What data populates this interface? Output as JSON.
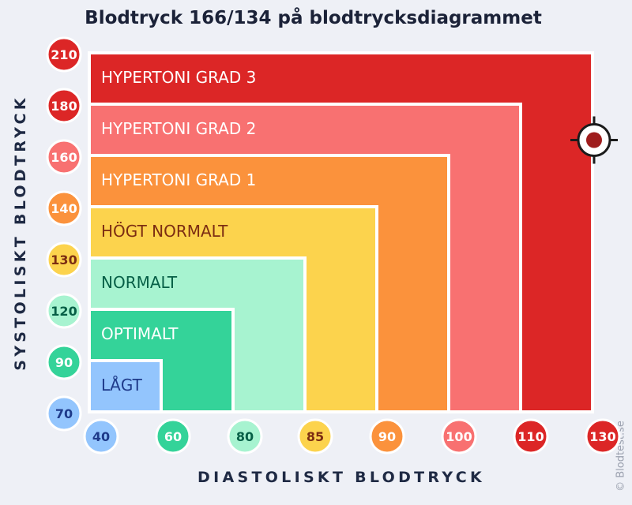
{
  "title": "Blodtryck 166/134 på blodtrycksdiagrammet",
  "credit": "© Blodtest.se",
  "chart_data": {
    "type": "heatmap",
    "xlabel": "DIASTOLISKT BLODTRYCK",
    "ylabel": "SYSTOLISKT BLODTRYCK",
    "x_ticks": [
      "40",
      "60",
      "80",
      "85",
      "90",
      "100",
      "110",
      "130"
    ],
    "y_ticks": [
      "70",
      "90",
      "120",
      "130",
      "140",
      "160",
      "180",
      "210"
    ],
    "zones": [
      {
        "label": "HYPERTONI GRAD 3",
        "systolic_max": 210,
        "diastolic_max": 130,
        "color": "#dc2626",
        "tick_text_color": "#ffffff",
        "label_color": "#ffffff"
      },
      {
        "label": "HYPERTONI GRAD 2",
        "systolic_max": 180,
        "diastolic_max": 110,
        "color": "#f87171",
        "tick_text_color": "#ffffff",
        "label_color": "#ffffff"
      },
      {
        "label": "HYPERTONI GRAD 1",
        "systolic_max": 160,
        "diastolic_max": 100,
        "color": "#fb923c",
        "tick_text_color": "#ffffff",
        "label_color": "#ffffff"
      },
      {
        "label": "HÖGT NORMALT",
        "systolic_max": 140,
        "diastolic_max": 90,
        "color": "#fcd34d",
        "tick_text_color": "#7c2d12",
        "label_color": "#7c2d12"
      },
      {
        "label": "NORMALT",
        "systolic_max": 130,
        "diastolic_max": 85,
        "color": "#a7f3d0",
        "tick_text_color": "#065f46",
        "label_color": "#065f46"
      },
      {
        "label": "OPTIMALT",
        "systolic_max": 120,
        "diastolic_max": 80,
        "color": "#34d399",
        "tick_text_color": "#ffffff",
        "label_color": "#ffffff"
      },
      {
        "label": "LÅGT",
        "systolic_max": 90,
        "diastolic_max": 60,
        "color": "#93c5fd",
        "tick_text_color": "#1e3a8a",
        "label_color": "#1e3a8a"
      }
    ],
    "x_tick_colors": [
      "#93c5fd",
      "#34d399",
      "#a7f3d0",
      "#fcd34d",
      "#fb923c",
      "#f87171",
      "#dc2626",
      "#dc2626"
    ],
    "x_tick_text_colors": [
      "#1e3a8a",
      "#ffffff",
      "#065f46",
      "#7c2d12",
      "#ffffff",
      "#ffffff",
      "#ffffff",
      "#ffffff"
    ],
    "y_tick_colors": [
      "#93c5fd",
      "#34d399",
      "#a7f3d0",
      "#fcd34d",
      "#fb923c",
      "#f87171",
      "#dc2626",
      "#dc2626"
    ],
    "y_tick_text_colors": [
      "#1e3a8a",
      "#ffffff",
      "#065f46",
      "#7c2d12",
      "#ffffff",
      "#ffffff",
      "#ffffff",
      "#ffffff"
    ],
    "marker": {
      "systolic": 166,
      "diastolic": 134,
      "color": "#9f1d1d"
    }
  }
}
